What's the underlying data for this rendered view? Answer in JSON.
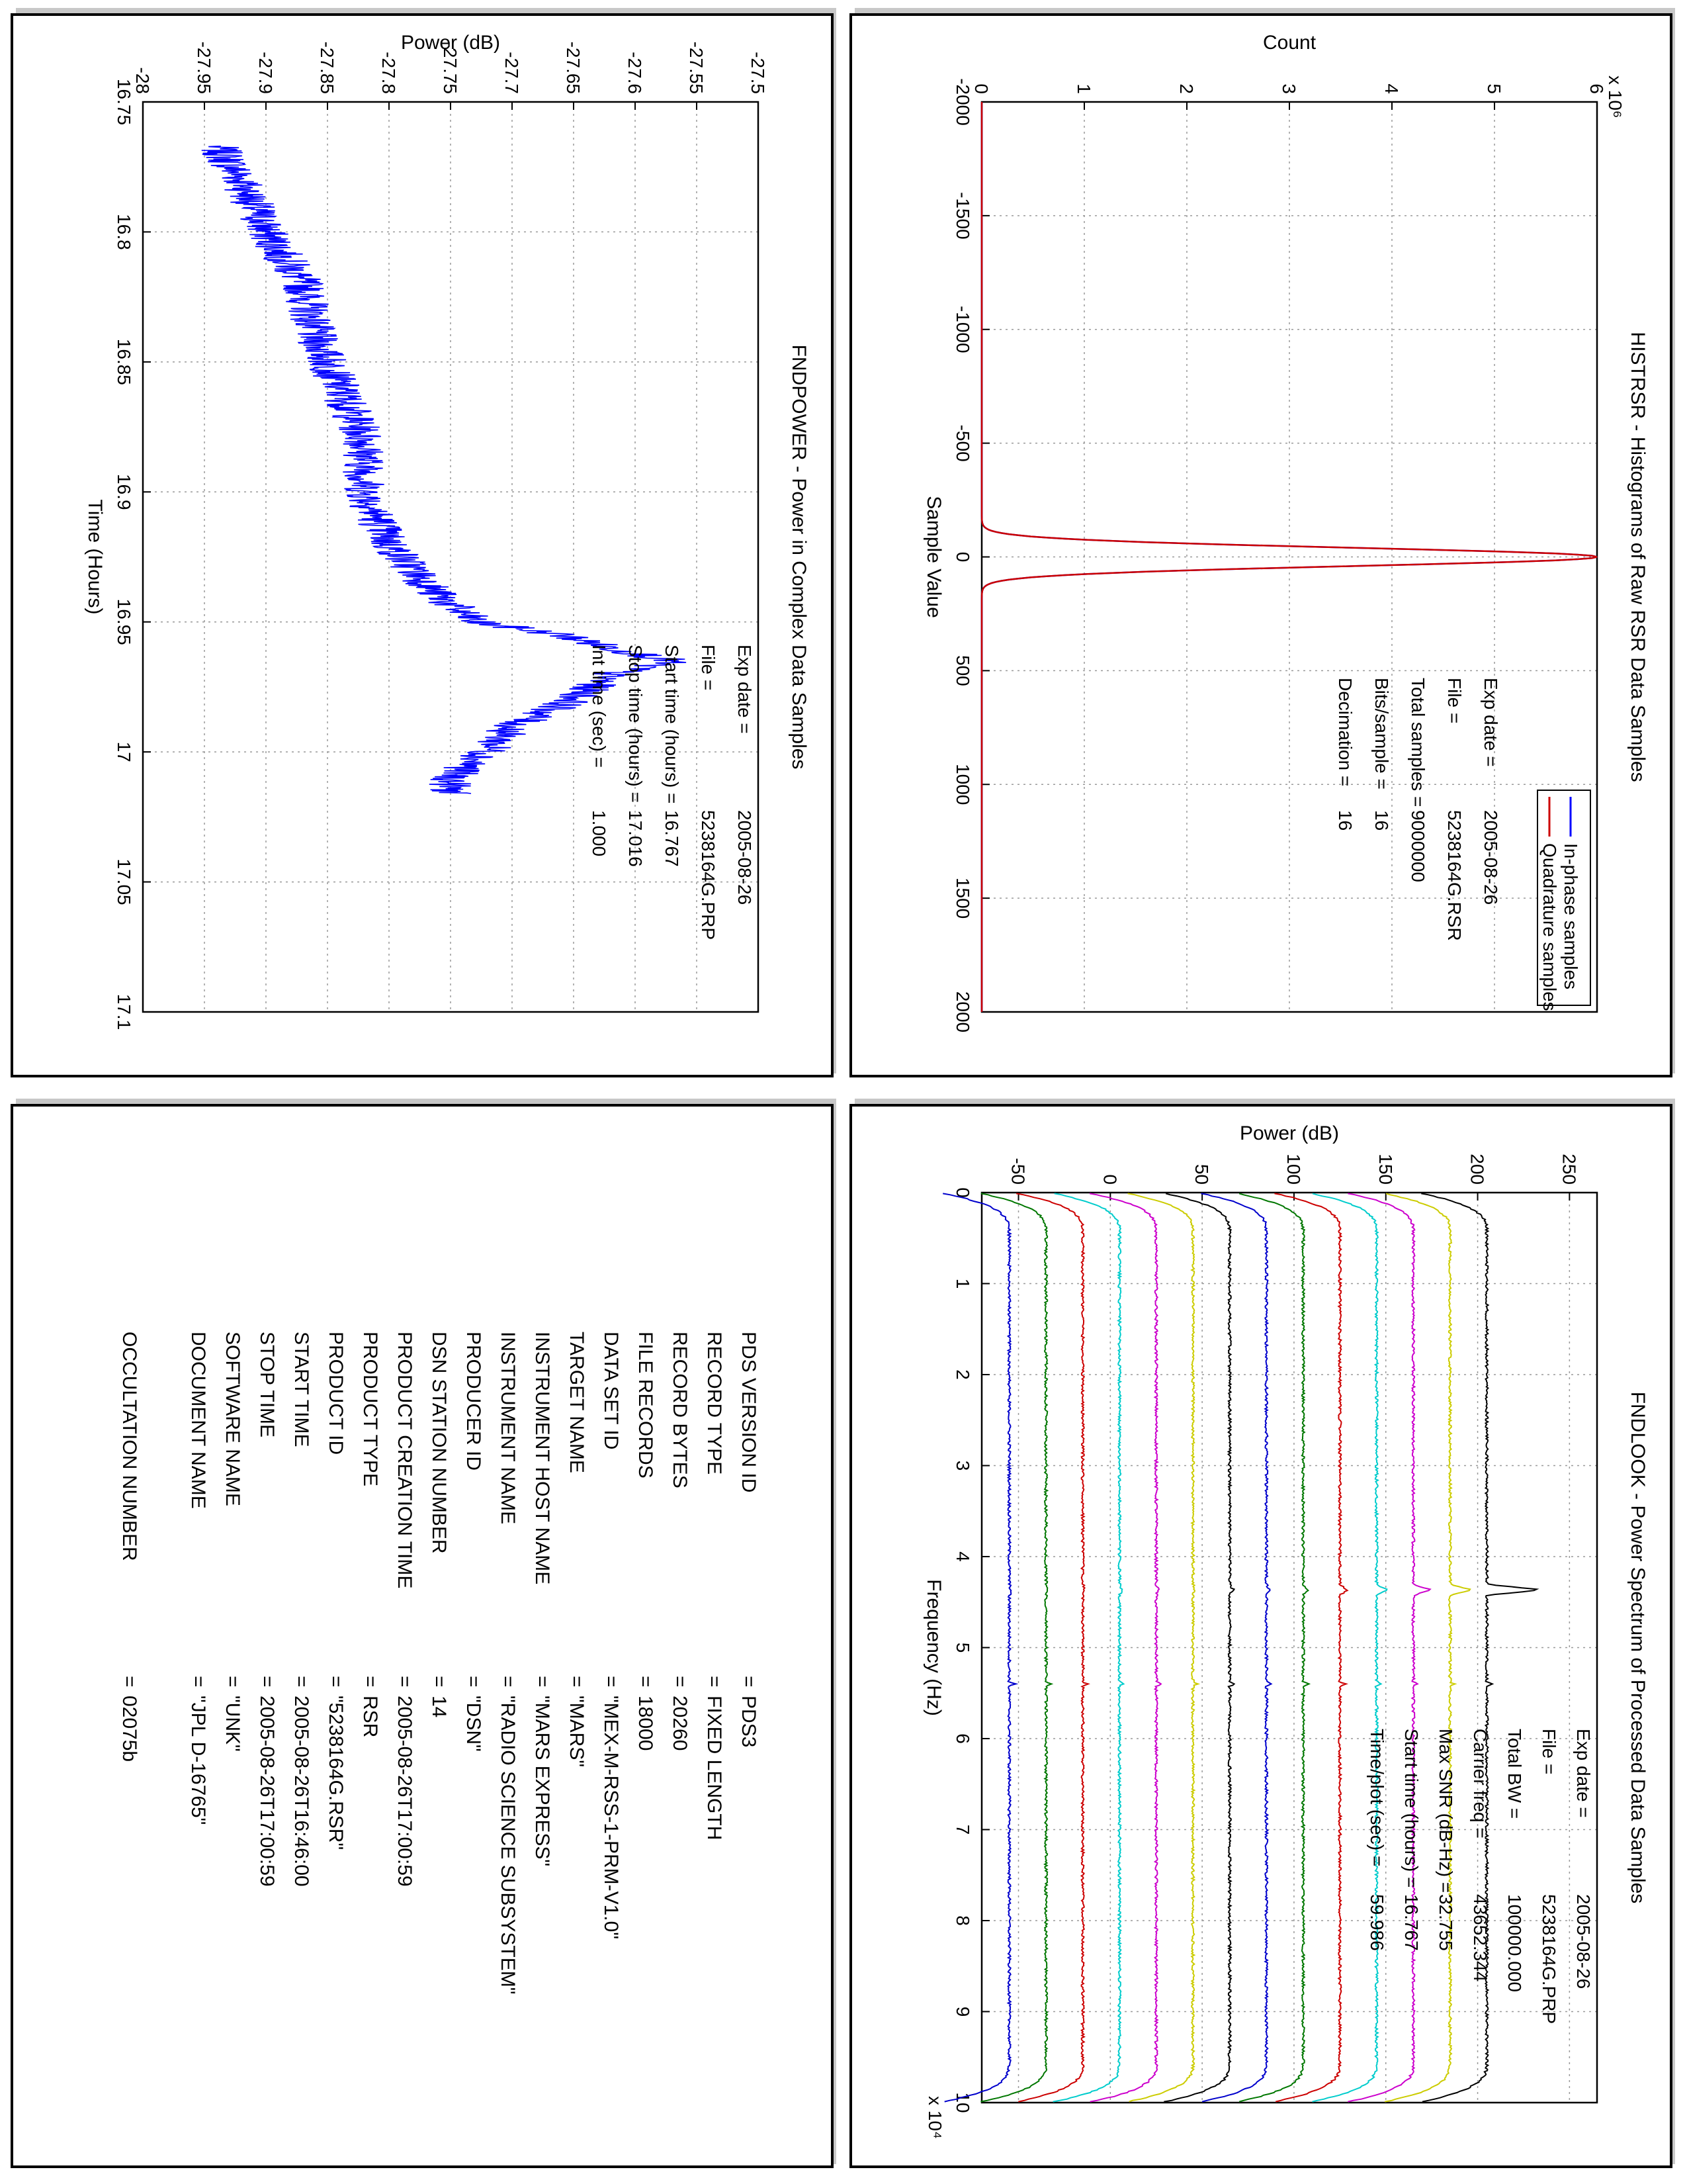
{
  "chart_data": [
    {
      "type": "line",
      "title": "HISTRSR - Histograms of Raw RSR Data Samples",
      "xlabel": "Sample Value",
      "ylabel": "Count",
      "xlim": [
        -2000,
        2000
      ],
      "ylim": [
        0,
        6
      ],
      "y_exponent_label": "x 10⁶",
      "xticks": [
        "-2000",
        "-1500",
        "-1000",
        "-500",
        "0",
        "500",
        "1000",
        "1500",
        "2000"
      ],
      "yticks": [
        "0",
        "1",
        "2",
        "3",
        "4",
        "5",
        "6"
      ],
      "grid": true,
      "legend_position": "top-right",
      "series": [
        {
          "name": "In-phase samples",
          "color": "#0000ff",
          "peak_x": 0,
          "peak_y": 6.0,
          "sigma": 40
        },
        {
          "name": "Quadrature samples",
          "color": "#cc0000",
          "peak_x": 0,
          "peak_y": 6.0,
          "sigma": 40
        }
      ],
      "annotations": [
        {
          "label": "Exp date",
          "value": "2005-08-26"
        },
        {
          "label": "File",
          "value": "5238164G.RSR"
        },
        {
          "label": "Total samples",
          "value": "9000000"
        },
        {
          "label": "Bits/sample",
          "value": "16"
        },
        {
          "label": "Decimation",
          "value": "16"
        }
      ]
    },
    {
      "type": "line",
      "title": "FNDPOWER - Power in Complex Data Samples",
      "xlabel": "Time (Hours)",
      "ylabel": "Power (dB)",
      "xlim": [
        16.75,
        17.1
      ],
      "ylim": [
        -28,
        -27.5
      ],
      "xticks": [
        "16.75",
        "16.8",
        "16.85",
        "16.9",
        "16.95",
        "17",
        "17.05",
        "17.1"
      ],
      "yticks": [
        "-28",
        "-27.95",
        "-27.9",
        "-27.85",
        "-27.8",
        "-27.75",
        "-27.7",
        "-27.65",
        "-27.6",
        "-27.55",
        "-27.5"
      ],
      "grid": true,
      "series": [
        {
          "name": "",
          "color": "#0000ff",
          "x": [
            16.767,
            16.78,
            16.8,
            16.82,
            16.84,
            16.86,
            16.88,
            16.9,
            16.92,
            16.94,
            16.95,
            16.955,
            16.96,
            16.965,
            16.97,
            16.98,
            16.99,
            17.0,
            17.01,
            17.016
          ],
          "y": [
            -27.94,
            -27.92,
            -27.9,
            -27.87,
            -27.86,
            -27.84,
            -27.82,
            -27.82,
            -27.8,
            -27.76,
            -27.73,
            -27.66,
            -27.62,
            -27.57,
            -27.62,
            -27.65,
            -27.7,
            -27.72,
            -27.75,
            -27.75
          ]
        }
      ],
      "annotations": [
        {
          "label": "Exp date",
          "value": "2005-08-26"
        },
        {
          "label": "File",
          "value": "5238164G.PRP"
        },
        {
          "label": "Start time (hours)",
          "value": "16.767"
        },
        {
          "label": "Stop time (hours)",
          "value": "17.016"
        },
        {
          "label": "Int time (sec)",
          "value": "1.000"
        }
      ]
    },
    {
      "type": "line",
      "title": "FNDLOOK - Power Spectrum of Processed Data Samples",
      "xlabel": "Frequency (Hz)",
      "ylabel": "Power (dB)",
      "xlim": [
        0,
        10
      ],
      "x_exponent_label": "x 10⁴",
      "ylim": [
        -70,
        265
      ],
      "xticks": [
        "0",
        "1",
        "2",
        "3",
        "4",
        "5",
        "6",
        "7",
        "8",
        "9",
        "10"
      ],
      "yticks": [
        "-50",
        "0",
        "50",
        "100",
        "150",
        "200",
        "250"
      ],
      "grid": true,
      "series": [
        {
          "color": "#000000",
          "offset": 205,
          "peak": 30
        },
        {
          "color": "#cccc00",
          "offset": 185,
          "peak": 12
        },
        {
          "color": "#cc00cc",
          "offset": 165,
          "peak": 10
        },
        {
          "color": "#00cccc",
          "offset": 145,
          "peak": 6
        },
        {
          "color": "#cc0000",
          "offset": 125,
          "peak": 4
        },
        {
          "color": "#007700",
          "offset": 105,
          "peak": 3
        },
        {
          "color": "#0000cc",
          "offset": 85,
          "peak": 2
        },
        {
          "color": "#000000",
          "offset": 65,
          "peak": 2
        },
        {
          "color": "#cccc00",
          "offset": 45,
          "peak": 1
        },
        {
          "color": "#cc00cc",
          "offset": 25,
          "peak": 1
        },
        {
          "color": "#00cccc",
          "offset": 5,
          "peak": 1
        },
        {
          "color": "#cc0000",
          "offset": -15,
          "peak": 1
        },
        {
          "color": "#007700",
          "offset": -35,
          "peak": 1
        },
        {
          "color": "#0000cc",
          "offset": -55,
          "peak": 1
        }
      ],
      "carrier_x": 4.365,
      "spur_x": 5.4,
      "annotations": [
        {
          "label": "Exp date",
          "value": "2005-08-26"
        },
        {
          "label": "File",
          "value": "5238164G.PRP"
        },
        {
          "label": "Total BW",
          "value": "100000.000"
        },
        {
          "label": "Carrier freq",
          "value": "43652.344"
        },
        {
          "label": "Max SNR (dB-Hz)",
          "value": "32.755"
        },
        {
          "label": "Start time (hours)",
          "value": "16.767"
        },
        {
          "label": "Time/plot (sec)",
          "value": "59.986"
        }
      ]
    }
  ],
  "label_table": {
    "rows": [
      {
        "key": "PDS VERSION ID",
        "value": "PDS3"
      },
      {
        "key": "RECORD TYPE",
        "value": "FIXED LENGTH"
      },
      {
        "key": "RECORD BYTES",
        "value": "20260"
      },
      {
        "key": "FILE RECORDS",
        "value": "18000"
      },
      {
        "key": "DATA SET ID",
        "value": "\"MEX-M-RSS-1-PRM-V1.0\""
      },
      {
        "key": "TARGET NAME",
        "value": "\"MARS\""
      },
      {
        "key": "INSTRUMENT HOST NAME",
        "value": "\"MARS EXPRESS\""
      },
      {
        "key": "INSTRUMENT NAME",
        "value": "\"RADIO SCIENCE SUBSYSTEM\""
      },
      {
        "key": "PRODUCER ID",
        "value": "\"DSN\""
      },
      {
        "key": "DSN STATION NUMBER",
        "value": "14"
      },
      {
        "key": "PRODUCT CREATION TIME",
        "value": "2005-08-26T17:00:59"
      },
      {
        "key": "PRODUCT TYPE",
        "value": "RSR"
      },
      {
        "key": "PRODUCT ID",
        "value": "\"5238164G.RSR\""
      },
      {
        "key": "START TIME",
        "value": "2005-08-26T16:46:00"
      },
      {
        "key": "STOP TIME",
        "value": "2005-08-26T17:00:59"
      },
      {
        "key": "SOFTWARE NAME",
        "value": "\"UNK\""
      },
      {
        "key": "DOCUMENT NAME",
        "value": "\"JPL D-16765\""
      },
      {
        "key": "OCCULTATION NUMBER",
        "value": "02075b"
      }
    ],
    "separator": "="
  }
}
